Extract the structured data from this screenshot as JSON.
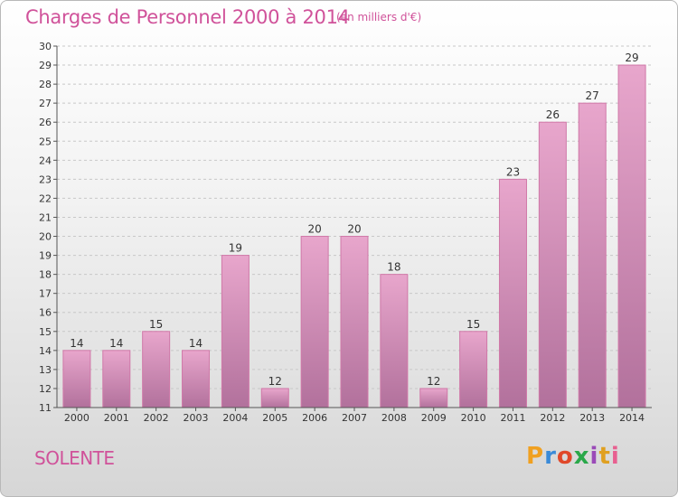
{
  "header": {
    "title": "Charges de Personnel 2000 à 2014",
    "subtitle": "(en milliers d'€)"
  },
  "footer": {
    "commune": "SOLENTE",
    "logo_text": "Proxiti",
    "logo_colors": [
      "#f0a020",
      "#3a8ad8",
      "#e0482a",
      "#2aa84a",
      "#9a4ab8",
      "#e0a020",
      "#e86090"
    ]
  },
  "chart_data": {
    "type": "bar",
    "title": "Charges de Personnel 2000 à 2014",
    "subtitle": "(en milliers d'€)",
    "categories": [
      "2000",
      "2001",
      "2002",
      "2003",
      "2004",
      "2005",
      "2006",
      "2007",
      "2008",
      "2009",
      "2010",
      "2011",
      "2012",
      "2013",
      "2014"
    ],
    "values": [
      14,
      14,
      15,
      14,
      19,
      12,
      20,
      20,
      18,
      12,
      15,
      23,
      26,
      27,
      29
    ],
    "ylim": [
      11,
      30
    ],
    "yticks": [
      11,
      12,
      13,
      14,
      15,
      16,
      17,
      18,
      19,
      20,
      21,
      22,
      23,
      24,
      25,
      26,
      27,
      28,
      29,
      30
    ],
    "grid": true,
    "colors": {
      "bar_top": "#e8a6cc",
      "bar_bottom": "#b2719c",
      "bar_side": "#d078a8",
      "grid": "#c8c8c8",
      "axis": "#555555",
      "title": "#d0529a"
    }
  }
}
